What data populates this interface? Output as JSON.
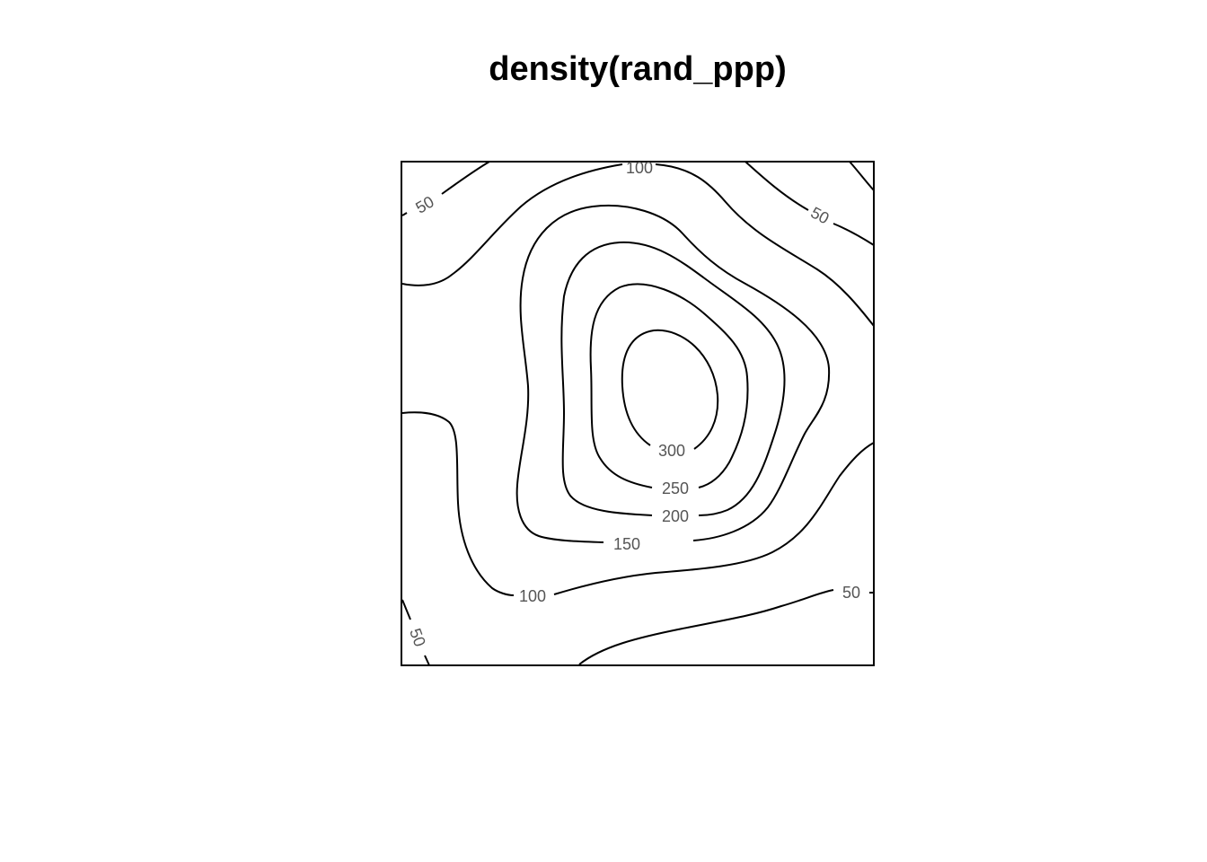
{
  "chart_data": {
    "type": "contour",
    "title": "density(rand_ppp)",
    "xlabel": "",
    "ylabel": "",
    "axes_shown": false,
    "frame": true,
    "line_color": "#000000",
    "label_color": "#555555",
    "levels": [
      50,
      100,
      150,
      200,
      250,
      300
    ],
    "contour_labels": [
      {
        "level": 50,
        "text": "50",
        "location": "top-left"
      },
      {
        "level": 100,
        "text": "100",
        "location": "top-edge"
      },
      {
        "level": 50,
        "text": "50",
        "location": "top-right"
      },
      {
        "level": 300,
        "text": "300",
        "location": "center"
      },
      {
        "level": 250,
        "text": "250",
        "location": "center"
      },
      {
        "level": 200,
        "text": "200",
        "location": "center"
      },
      {
        "level": 150,
        "text": "150",
        "location": "center"
      },
      {
        "level": 100,
        "text": "100",
        "location": "bottom-left"
      },
      {
        "level": 50,
        "text": "50",
        "location": "bottom-right"
      },
      {
        "level": 50,
        "text": "50",
        "location": "bottom-left-corner"
      }
    ]
  }
}
